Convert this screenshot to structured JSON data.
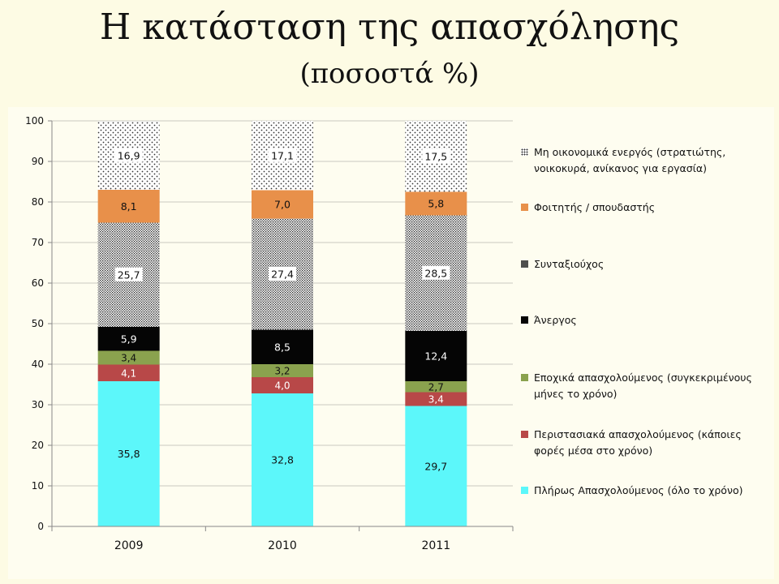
{
  "page": {
    "title": "Η κατάσταση της απασχόλησης",
    "subtitle": "(ποσοστά %)"
  },
  "chart_data": {
    "type": "bar",
    "stacked": true,
    "categories": [
      "2009",
      "2010",
      "2011"
    ],
    "ylim": [
      0,
      100
    ],
    "yticks": [
      "0",
      "10",
      "20",
      "30",
      "40",
      "50",
      "60",
      "70",
      "80",
      "90",
      "100"
    ],
    "grid": true,
    "legend_position": "right",
    "series": [
      {
        "name": "Πλήρως Απασχολούμενος  (όλο το χρόνο)",
        "values": [
          35.8,
          32.8,
          29.7
        ],
        "labels": [
          "35,8",
          "32,8",
          "29,7"
        ],
        "color": "#5cf7fa",
        "pattern": "solid"
      },
      {
        "name": "Περιστασιακά απασχολούμενος (κάποιες φορές μέσα στο χρόνο)",
        "values": [
          4.1,
          4.0,
          3.4
        ],
        "labels": [
          "4,1",
          "4,0",
          "3,4"
        ],
        "color": "#b84848",
        "pattern": "solid"
      },
      {
        "name": "Εποχικά απασχολούμενος (συγκεκριμένους μήνες το χρόνο)",
        "values": [
          3.4,
          3.2,
          2.7
        ],
        "labels": [
          "3,4",
          "3,2",
          "2,7"
        ],
        "color": "#8aa24e",
        "pattern": "solid"
      },
      {
        "name": "Άνεργος",
        "values": [
          5.9,
          8.5,
          12.4
        ],
        "labels": [
          "5,9",
          "8,5",
          "12,4"
        ],
        "color": "#050505",
        "pattern": "solid"
      },
      {
        "name": "Συνταξιούχος",
        "values": [
          25.7,
          27.4,
          28.5
        ],
        "labels": [
          "25,7",
          "27,4",
          "28,5"
        ],
        "color": "#333333",
        "pattern": "dense-dots"
      },
      {
        "name": "Φοιτητής / σπουδαστής",
        "values": [
          8.1,
          7.0,
          5.8
        ],
        "labels": [
          "8,1",
          "7,0",
          "5,8"
        ],
        "color": "#e8904a",
        "pattern": "solid"
      },
      {
        "name": "Μη οικονομικά ενεργός (στρατιώτης, νοικοκυρά, ανίκανος για εργασία)",
        "values": [
          16.9,
          17.1,
          17.5
        ],
        "labels": [
          "16,9",
          "17,1",
          "17,5"
        ],
        "color": "#333333",
        "pattern": "sparse-dots"
      }
    ],
    "legend_order": [
      6,
      5,
      4,
      3,
      2,
      1,
      0
    ]
  }
}
